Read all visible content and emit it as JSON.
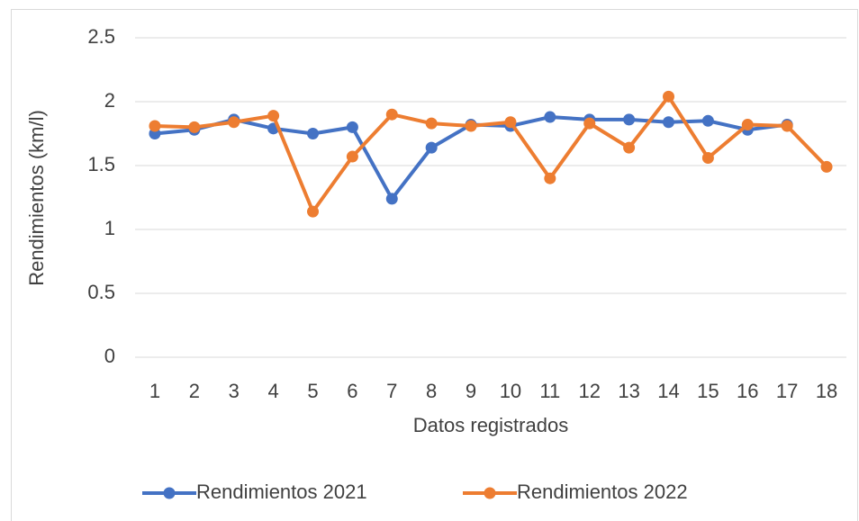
{
  "chart_data": {
    "type": "line",
    "x_label": "Datos registrados",
    "y_label": "Rendimientos (km/l)",
    "categories": [
      "1",
      "2",
      "3",
      "4",
      "5",
      "6",
      "7",
      "8",
      "9",
      "10",
      "11",
      "12",
      "13",
      "14",
      "15",
      "16",
      "17",
      "18"
    ],
    "series": [
      {
        "name": "Rendimientos 2021",
        "color": "#4472c4",
        "values": [
          1.75,
          1.78,
          1.86,
          1.79,
          1.75,
          1.8,
          1.24,
          1.64,
          1.82,
          1.81,
          1.88,
          1.86,
          1.86,
          1.84,
          1.85,
          1.78,
          1.82,
          null
        ]
      },
      {
        "name": "Rendimientos 2022",
        "color": "#ed7d31",
        "values": [
          1.81,
          1.8,
          1.84,
          1.89,
          1.14,
          1.57,
          1.9,
          1.83,
          1.81,
          1.84,
          1.4,
          1.83,
          1.64,
          2.04,
          1.56,
          1.82,
          1.81,
          1.49
        ]
      }
    ],
    "ylim": [
      0,
      2.5
    ],
    "yticks": [
      0,
      0.5,
      1,
      1.5,
      2,
      2.5
    ],
    "grid": true,
    "legend": "bottom"
  }
}
